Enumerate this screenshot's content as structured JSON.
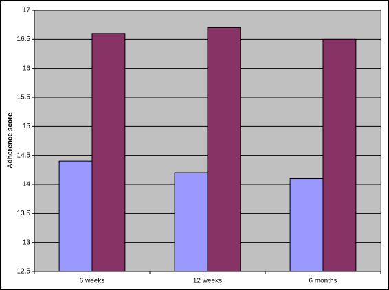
{
  "chart_data": {
    "type": "bar",
    "y_label": "Adherence score",
    "categories": [
      "6 weeks",
      "12 weeks",
      "6 months"
    ],
    "series": [
      {
        "color": "#9999ff",
        "values": [
          14.4,
          14.2,
          14.1
        ]
      },
      {
        "color": "#883366",
        "values": [
          16.6,
          16.7,
          16.5
        ]
      }
    ],
    "ylim": [
      12.5,
      17
    ],
    "yticks": [
      12.5,
      13,
      13.5,
      14,
      14.5,
      15,
      15.5,
      16,
      16.5,
      17
    ],
    "grid": true
  }
}
